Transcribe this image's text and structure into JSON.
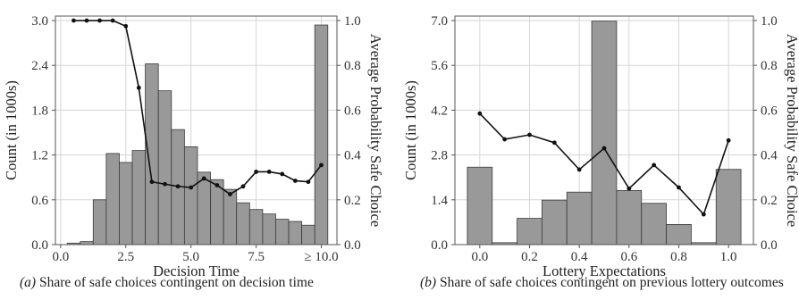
{
  "charts": [
    {
      "caption_tag": "(a)",
      "caption_text": "Share of safe choices contingent on decision time",
      "chart_data": {
        "type": "bar",
        "overlay_type": "line",
        "xlabel": "Decision Time",
        "ylabel": "Count (in 1000s)",
        "y2label": "Average Probability Safe Choice",
        "xlim": [
          -0.2,
          10.6
        ],
        "ylim": [
          0,
          3.06
        ],
        "y2lim": [
          0,
          1.02
        ],
        "xticks": [
          0,
          2.5,
          5.0,
          7.5,
          10.0
        ],
        "xtick_labels": [
          "0.0",
          "2.5",
          "5.0",
          "7.5",
          "≥ 10.0"
        ],
        "yticks": [
          0,
          0.6,
          1.2,
          1.8,
          2.4,
          3.0
        ],
        "ytick_labels": [
          "0.0",
          "0.6",
          "1.2",
          "1.8",
          "2.4",
          "3.0"
        ],
        "y2ticks": [
          0,
          0.2,
          0.4,
          0.6,
          0.8,
          1.0
        ],
        "y2tick_labels": [
          "0.0",
          "0.2",
          "0.4",
          "0.6",
          "0.8",
          "1.0"
        ],
        "grid": true,
        "bin_width": 0.5,
        "bin_starts": [
          0.25,
          0.75,
          1.25,
          1.75,
          2.25,
          2.75,
          3.25,
          3.75,
          4.25,
          4.75,
          5.25,
          5.75,
          6.25,
          6.75,
          7.25,
          7.75,
          8.25,
          8.75,
          9.25,
          9.75
        ],
        "counts": [
          0.02,
          0.04,
          0.6,
          1.22,
          1.1,
          1.26,
          2.42,
          2.06,
          1.54,
          1.31,
          0.97,
          0.87,
          0.74,
          0.56,
          0.47,
          0.41,
          0.34,
          0.31,
          0.26,
          2.94
        ],
        "line_x": [
          0.5,
          1.0,
          1.5,
          2.0,
          2.5,
          3.0,
          3.5,
          4.0,
          4.5,
          5.0,
          5.5,
          6.0,
          6.5,
          7.0,
          7.5,
          8.0,
          8.5,
          9.0,
          9.5,
          10.0
        ],
        "line_y": [
          1.0,
          1.0,
          1.0,
          1.0,
          0.975,
          0.7,
          0.28,
          0.27,
          0.26,
          0.255,
          0.295,
          0.265,
          0.225,
          0.26,
          0.325,
          0.325,
          0.315,
          0.285,
          0.28,
          0.355
        ]
      }
    },
    {
      "caption_tag": "(b)",
      "caption_text": "Share of safe choices contingent on previous lottery outcomes",
      "chart_data": {
        "type": "bar",
        "overlay_type": "line",
        "xlabel": "Lottery Expectations",
        "ylabel": "Count (in 1000s)",
        "y2label": "Average Probability Safe Choice",
        "xlim": [
          -0.1,
          1.1
        ],
        "ylim": [
          0,
          7.14
        ],
        "y2lim": [
          0,
          1.02
        ],
        "xticks": [
          0.0,
          0.2,
          0.4,
          0.6,
          0.8,
          1.0
        ],
        "xtick_labels": [
          "0.0",
          "0.2",
          "0.4",
          "0.6",
          "0.8",
          "1.0"
        ],
        "yticks": [
          0,
          1.4,
          2.8,
          4.2,
          5.6,
          7.0
        ],
        "ytick_labels": [
          "0.0",
          "1.4",
          "2.8",
          "4.2",
          "5.6",
          "7.0"
        ],
        "y2ticks": [
          0,
          0.2,
          0.4,
          0.6,
          0.8,
          1.0
        ],
        "y2tick_labels": [
          "0.0",
          "0.2",
          "0.4",
          "0.6",
          "0.8",
          "1.0"
        ],
        "grid": true,
        "bin_width": 0.1,
        "bin_starts": [
          -0.05,
          0.05,
          0.15,
          0.25,
          0.35,
          0.45,
          0.55,
          0.65,
          0.75,
          0.85,
          0.95
        ],
        "counts": [
          2.42,
          0.06,
          0.82,
          1.39,
          1.64,
          6.98,
          1.69,
          1.29,
          0.63,
          0.06,
          2.35
        ],
        "line_x": [
          0.0,
          0.1,
          0.2,
          0.3,
          0.4,
          0.5,
          0.6,
          0.7,
          0.8,
          0.9,
          1.0
        ],
        "line_y": [
          0.585,
          0.47,
          0.49,
          0.455,
          0.335,
          0.43,
          0.25,
          0.355,
          0.255,
          0.135,
          0.465
        ]
      }
    }
  ]
}
